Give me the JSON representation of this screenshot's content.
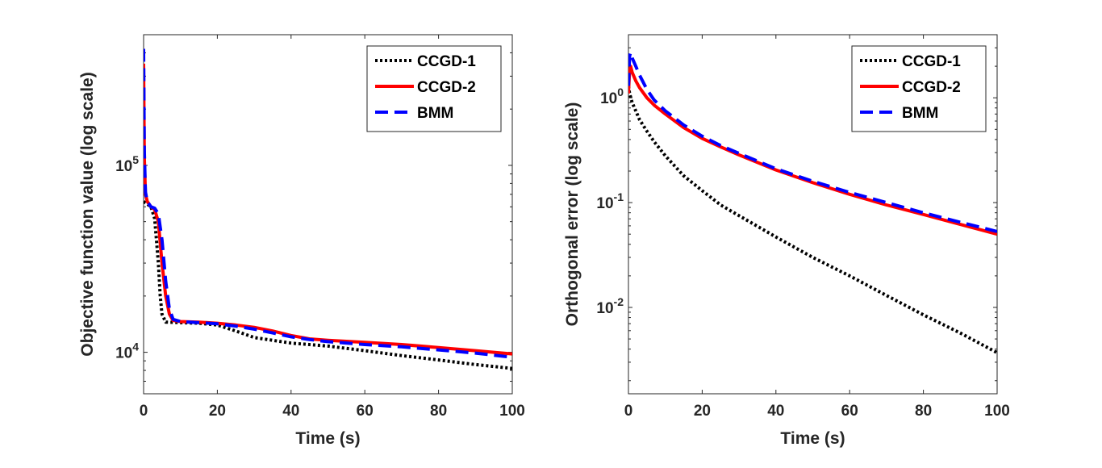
{
  "chart_data": [
    {
      "type": "line",
      "title": "",
      "xlabel": "Time (s)",
      "ylabel": "Objective function value (log scale)",
      "yscale": "log",
      "xlim": [
        0,
        100
      ],
      "ylim": [
        6000,
        500000
      ],
      "xticks": [
        0,
        20,
        40,
        60,
        80,
        100
      ],
      "yticks": [
        {
          "value": 10000,
          "base": "10",
          "exp": "4"
        },
        {
          "value": 100000,
          "base": "10",
          "exp": "5"
        }
      ],
      "legend_position": "top-right",
      "series": [
        {
          "name": "CCGD-1",
          "color": "#000000",
          "style": "dotted",
          "x": [
            0,
            2,
            3,
            4,
            4.5,
            5,
            6,
            10,
            15,
            20,
            25,
            30,
            40,
            50,
            60,
            70,
            80,
            90,
            100
          ],
          "y": [
            64000,
            60000,
            52000,
            30000,
            20000,
            16000,
            14500,
            14400,
            14300,
            14000,
            13000,
            12000,
            11200,
            10800,
            10200,
            9600,
            9100,
            8600,
            8200
          ]
        },
        {
          "name": "CCGD-2",
          "color": "#ff0000",
          "style": "solid",
          "x": [
            0,
            0.2,
            0.5,
            1,
            2,
            3,
            4,
            5,
            6,
            7,
            8,
            10,
            15,
            20,
            25,
            30,
            35,
            40,
            45,
            50,
            60,
            70,
            80,
            90,
            100
          ],
          "y": [
            350000,
            110000,
            70000,
            64000,
            60000,
            58000,
            50000,
            30000,
            20000,
            16000,
            14800,
            14600,
            14500,
            14300,
            14000,
            13600,
            13000,
            12300,
            11800,
            11600,
            11300,
            11000,
            10600,
            10200,
            9800
          ]
        },
        {
          "name": "BMM",
          "color": "#0000ff",
          "style": "dashed",
          "x": [
            0,
            0.2,
            0.5,
            1,
            2,
            3,
            4,
            5,
            6,
            7,
            8,
            10,
            15,
            20,
            25,
            30,
            35,
            40,
            45,
            50,
            60,
            70,
            80,
            90,
            100
          ],
          "y": [
            420000,
            120000,
            72000,
            64000,
            60000,
            59000,
            55000,
            40000,
            24000,
            17000,
            15000,
            14600,
            14400,
            14200,
            13800,
            13300,
            12700,
            12100,
            11700,
            11400,
            11000,
            10700,
            10300,
            9900,
            9400
          ]
        }
      ]
    },
    {
      "type": "line",
      "title": "",
      "xlabel": "Time (s)",
      "ylabel": "Orthogonal error (log scale)",
      "yscale": "log",
      "xlim": [
        0,
        100
      ],
      "ylim": [
        0.0015,
        4
      ],
      "xticks": [
        0,
        20,
        40,
        60,
        80,
        100
      ],
      "yticks": [
        {
          "value": 0.01,
          "base": "10",
          "exp": "-2"
        },
        {
          "value": 0.1,
          "base": "10",
          "exp": "-1"
        },
        {
          "value": 1,
          "base": "10",
          "exp": "0"
        }
      ],
      "legend_position": "top-right",
      "series": [
        {
          "name": "CCGD-1",
          "color": "#000000",
          "style": "dotted",
          "x": [
            0,
            0.3,
            1,
            2,
            3,
            5,
            7,
            10,
            15,
            20,
            25,
            30,
            40,
            50,
            60,
            70,
            80,
            90,
            100
          ],
          "y": [
            1.3,
            1.1,
            0.9,
            0.75,
            0.62,
            0.48,
            0.38,
            0.28,
            0.18,
            0.13,
            0.095,
            0.075,
            0.047,
            0.03,
            0.02,
            0.013,
            0.0085,
            0.0057,
            0.0037
          ]
        },
        {
          "name": "CCGD-2",
          "color": "#ff0000",
          "style": "solid",
          "x": [
            0,
            0.3,
            0.6,
            1,
            2,
            3,
            5,
            7,
            10,
            15,
            20,
            25,
            30,
            40,
            50,
            60,
            70,
            80,
            90,
            100
          ],
          "y": [
            1.1,
            1.8,
            2.0,
            1.75,
            1.45,
            1.25,
            1.0,
            0.85,
            0.7,
            0.52,
            0.41,
            0.34,
            0.285,
            0.205,
            0.155,
            0.12,
            0.095,
            0.077,
            0.062,
            0.05
          ]
        },
        {
          "name": "BMM",
          "color": "#0000ff",
          "style": "dashed",
          "x": [
            0,
            0.3,
            0.6,
            1,
            2,
            3,
            5,
            7,
            10,
            15,
            20,
            25,
            30,
            40,
            50,
            60,
            70,
            80,
            90,
            100
          ],
          "y": [
            1.3,
            2.5,
            2.7,
            2.4,
            2.0,
            1.65,
            1.2,
            0.95,
            0.75,
            0.55,
            0.43,
            0.35,
            0.295,
            0.21,
            0.16,
            0.125,
            0.1,
            0.08,
            0.065,
            0.053
          ]
        }
      ]
    }
  ]
}
